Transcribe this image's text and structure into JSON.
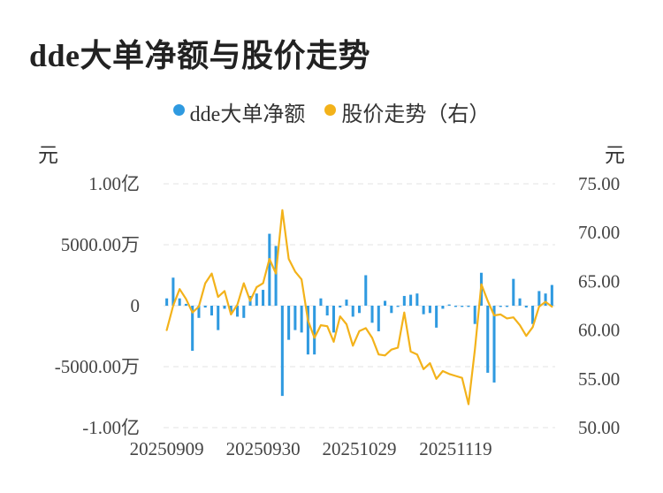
{
  "title": "dde大单净额与股价走势",
  "legend": {
    "dde_label": "dde大单净额",
    "price_label": "股价走势（右）"
  },
  "left_unit": "元",
  "right_unit": "元",
  "colors": {
    "bar": "#2f9ae0",
    "line": "#f3b21a",
    "grid": "#e3e3e3"
  },
  "chart_data": {
    "type": "bar+line",
    "title": "dde大单净额与股价走势",
    "x_tick_labels": [
      "20250909",
      "20250930",
      "20251029",
      "20251119"
    ],
    "x_tick_index": [
      0,
      15,
      30,
      45
    ],
    "y_left": {
      "unit": "元",
      "range": [
        -100000000,
        100000000
      ],
      "ticks": [
        100000000,
        50000000,
        0,
        -50000000,
        -100000000
      ],
      "tick_labels": [
        "1.00亿",
        "5000.00万",
        "0",
        "-5000.00万",
        "-1.00亿"
      ]
    },
    "y_right": {
      "unit": "元",
      "range": [
        50,
        75
      ],
      "ticks": [
        75,
        70,
        65,
        60,
        55,
        50
      ],
      "tick_labels": [
        "75.00",
        "70.00",
        "65.00",
        "60.00",
        "55.00",
        "50.00"
      ]
    },
    "series": [
      {
        "name": "dde大单净额",
        "type": "bar",
        "axis": "left",
        "values": [
          6000000,
          23000000,
          6000000,
          1500000,
          -37000000,
          -10000000,
          -1500000,
          -8000000,
          -20000000,
          -2500000,
          -5000000,
          -9000000,
          -10000000,
          8000000,
          10000000,
          13000000,
          59000000,
          49000000,
          -74000000,
          -28000000,
          -20000000,
          -22000000,
          -40000000,
          -40000000,
          6000000,
          -8000000,
          -22000000,
          -1500000,
          5000000,
          -9000000,
          -6000000,
          25000000,
          -14000000,
          -21000000,
          4000000,
          -6000000,
          -1000000,
          8000000,
          9000000,
          10000000,
          -7000000,
          -6000000,
          -18000000,
          -2500000,
          1000000,
          -1000000,
          -1000000,
          -1000000,
          -15000000,
          27000000,
          -55000000,
          -63000000,
          -1000000,
          -1000000,
          22000000,
          6000000,
          -1500000,
          -15000000,
          12000000,
          10000000,
          17000000
        ]
      },
      {
        "name": "股价走势（右）",
        "type": "line",
        "axis": "right",
        "values": [
          60.0,
          62.5,
          64.2,
          63.2,
          61.8,
          62.4,
          64.8,
          65.8,
          63.4,
          64.0,
          61.6,
          62.6,
          64.8,
          63.0,
          64.4,
          64.8,
          67.3,
          65.8,
          72.3,
          67.3,
          66.0,
          65.2,
          61.0,
          59.2,
          60.5,
          60.4,
          58.8,
          61.4,
          60.6,
          58.4,
          59.9,
          60.2,
          59.2,
          57.5,
          57.4,
          58.0,
          58.2,
          61.8,
          57.8,
          57.5,
          56.0,
          56.6,
          55.0,
          55.8,
          55.5,
          55.3,
          55.1,
          52.4,
          58.0,
          64.7,
          63.0,
          61.5,
          61.6,
          61.2,
          61.3,
          60.5,
          59.4,
          60.3,
          62.4,
          62.9,
          62.4
        ]
      }
    ]
  }
}
